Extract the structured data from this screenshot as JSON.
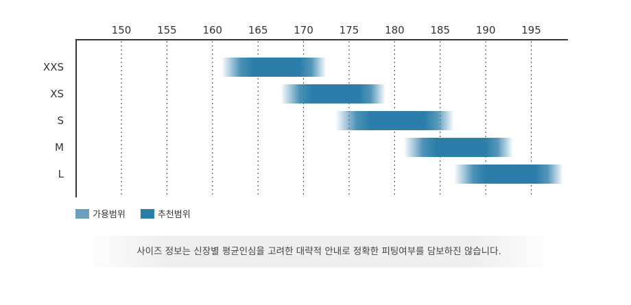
{
  "chart_data": {
    "type": "bar",
    "x_ticks": [
      150,
      155,
      160,
      165,
      170,
      175,
      180,
      185,
      190,
      195
    ],
    "xlim": [
      145,
      199
    ],
    "categories": [
      "XXS",
      "XS",
      "S",
      "M",
      "L"
    ],
    "ranges": [
      {
        "size": "XXS",
        "start": 161,
        "end": 172.5
      },
      {
        "size": "XS",
        "start": 167.5,
        "end": 179
      },
      {
        "size": "S",
        "start": 173.5,
        "end": 186.5
      },
      {
        "size": "M",
        "start": 181,
        "end": 193
      },
      {
        "size": "L",
        "start": 186.5,
        "end": 198.5
      }
    ],
    "legend": [
      {
        "label": "가용범위",
        "color": "#6a9fbe"
      },
      {
        "label": "추천범위",
        "color": "#2a7ea9"
      }
    ],
    "grid": "vertical-dotted"
  },
  "note": "사이즈 정보는 신장별 평균인심을 고려한 대략적 안내로 정확한 피팅여부를 담보하진 않습니다."
}
